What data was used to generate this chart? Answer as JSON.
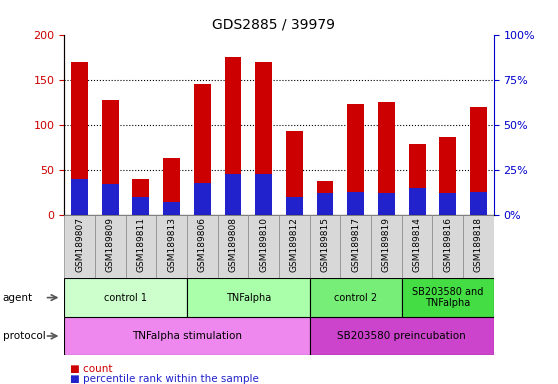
{
  "title": "GDS2885 / 39979",
  "samples": [
    "GSM189807",
    "GSM189809",
    "GSM189811",
    "GSM189813",
    "GSM189806",
    "GSM189808",
    "GSM189810",
    "GSM189812",
    "GSM189815",
    "GSM189817",
    "GSM189819",
    "GSM189814",
    "GSM189816",
    "GSM189818"
  ],
  "count_values": [
    170,
    128,
    40,
    63,
    145,
    175,
    170,
    93,
    38,
    123,
    125,
    79,
    86,
    120
  ],
  "percentile_values": [
    20,
    17,
    10,
    7,
    18,
    23,
    23,
    10,
    12,
    13,
    12,
    15,
    12,
    13
  ],
  "ylim_left": [
    0,
    200
  ],
  "ylim_right": [
    0,
    100
  ],
  "yticks_left": [
    0,
    50,
    100,
    150,
    200
  ],
  "yticks_right": [
    0,
    25,
    50,
    75,
    100
  ],
  "ytick_labels_right": [
    "0%",
    "25%",
    "50%",
    "75%",
    "100%"
  ],
  "bar_color_count": "#cc0000",
  "bar_color_pct": "#2222cc",
  "bar_width": 0.55,
  "agent_groups": [
    {
      "label": "control 1",
      "start": 0,
      "end": 3,
      "color": "#ccffcc"
    },
    {
      "label": "TNFalpha",
      "start": 4,
      "end": 7,
      "color": "#aaffaa"
    },
    {
      "label": "control 2",
      "start": 8,
      "end": 10,
      "color": "#77ee77"
    },
    {
      "label": "SB203580 and\nTNFalpha",
      "start": 11,
      "end": 13,
      "color": "#44dd44"
    }
  ],
  "protocol_groups": [
    {
      "label": "TNFalpha stimulation",
      "start": 0,
      "end": 7,
      "color": "#ee88ee"
    },
    {
      "label": "SB203580 preincubation",
      "start": 8,
      "end": 13,
      "color": "#cc44cc"
    }
  ],
  "legend_count_label": "count",
  "legend_pct_label": "percentile rank within the sample",
  "tick_label_color_left": "#cc0000",
  "tick_label_color_right": "#0000cc",
  "sample_bg_color": "#d8d8d8",
  "sample_border_color": "#888888"
}
